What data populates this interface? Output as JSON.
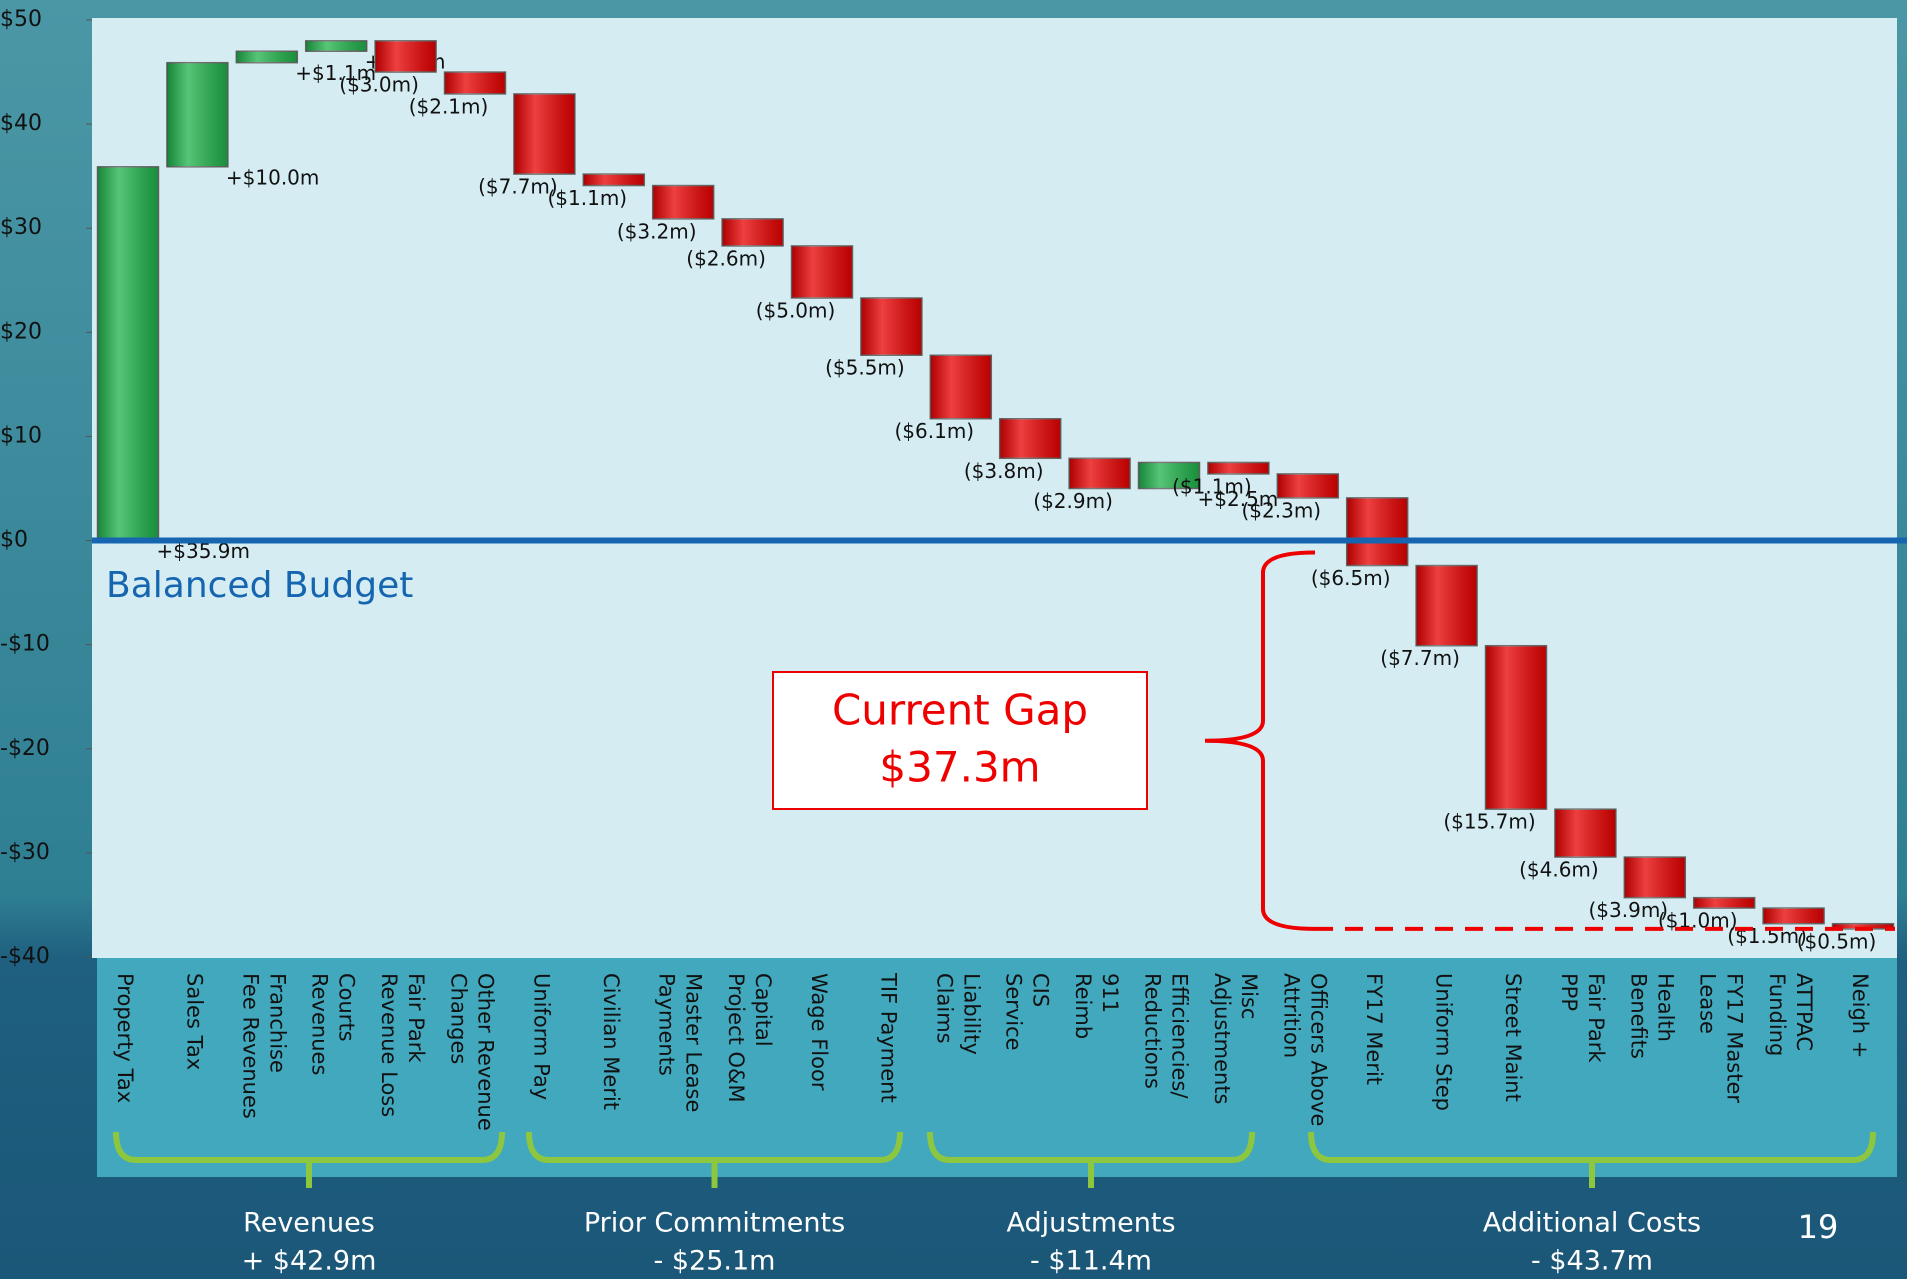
{
  "chart_data": {
    "type": "waterfall",
    "categories": [
      [
        "Property Tax"
      ],
      [
        "Sales Tax"
      ],
      [
        "Franchise",
        "Fee Revenues"
      ],
      [
        "Courts",
        "Revenues"
      ],
      [
        "Fair Park",
        "Revenue Loss"
      ],
      [
        "Other Revenue",
        "Changes"
      ],
      [
        "Uniform Pay"
      ],
      [
        "Civilian Merit"
      ],
      [
        "Master Lease",
        "Payments"
      ],
      [
        "Capital",
        "Project O&M"
      ],
      [
        "Wage Floor"
      ],
      [
        "TIF Payment"
      ],
      [
        "Liability",
        "Claims"
      ],
      [
        "CIS",
        "Service"
      ],
      [
        "911",
        "Reimb"
      ],
      [
        "Efficiencies/",
        "Reductions"
      ],
      [
        "Misc",
        "Adjustments"
      ],
      [
        "Officers Above",
        "Attrition"
      ],
      [
        "FY17 Merit"
      ],
      [
        "Uniform Step"
      ],
      [
        "Street Maint"
      ],
      [
        "Fair Park",
        "PPP"
      ],
      [
        "Health",
        "Benefits"
      ],
      [
        "FY17 Master",
        "Lease"
      ],
      [
        "ATTPAC",
        "Funding"
      ],
      [
        "Neigh +"
      ]
    ],
    "values": [
      35.9,
      10.0,
      1.1,
      1.0,
      -3.0,
      -2.1,
      -7.7,
      -1.1,
      -3.2,
      -2.6,
      -5.0,
      -5.5,
      -6.1,
      -3.8,
      -2.9,
      2.5,
      -1.1,
      -2.3,
      -6.5,
      -7.7,
      -15.7,
      -4.6,
      -3.9,
      -1.0,
      -1.5,
      -0.5
    ],
    "value_labels": [
      "+$35.9m",
      "+$10.0m",
      "+$1.1m",
      "+$1.0m",
      "($3.0m)",
      "($2.1m)",
      "($7.7m)",
      "($1.1m)",
      "($3.2m)",
      "($2.6m)",
      "($5.0m)",
      "($5.5m)",
      "($6.1m)",
      "($3.8m)",
      "($2.9m)",
      "+$2.5m",
      "($1.1m)",
      "($2.3m)",
      "($6.5m)",
      "($7.7m)",
      "($15.7m)",
      "($4.6m)",
      "($3.9m)",
      "($1.0m)",
      "($1.5m)",
      "($0.5m)"
    ],
    "increase_color": "#1fb24a",
    "decrease_color": "#e80000",
    "ylim": [
      -40,
      50
    ],
    "yticks": [
      {
        "value": 50,
        "label": "$50"
      },
      {
        "value": 40,
        "label": "$40"
      },
      {
        "value": 30,
        "label": "$30"
      },
      {
        "value": 20,
        "label": "$20"
      },
      {
        "value": 10,
        "label": "$10"
      },
      {
        "value": 0,
        "label": "$0"
      },
      {
        "value": -10,
        "label": "-$10"
      },
      {
        "value": -20,
        "label": "-$20"
      },
      {
        "value": -30,
        "label": "-$30"
      },
      {
        "value": -40,
        "label": "-$40"
      }
    ],
    "annotations": {
      "baseline": "Balanced Budget",
      "gap": [
        "Current Gap",
        "$37.3m"
      ]
    },
    "groups": [
      {
        "name": "Revenues",
        "total": "+ $42.9m"
      },
      {
        "name": "Prior Commitments",
        "total": "- $25.1m"
      },
      {
        "name": "Adjustments",
        "total": "- $11.4m"
      },
      {
        "name": "Additional Costs",
        "total": "- $43.7m"
      }
    ]
  },
  "page_number": "19"
}
